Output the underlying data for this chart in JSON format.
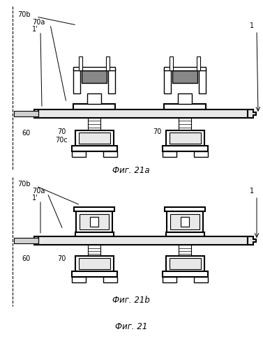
{
  "bg_color": "#ffffff",
  "line_color": "#000000",
  "gray_fill": "#d0d0d0",
  "light_gray": "#e8e8e8",
  "dark_gray": "#888888",
  "fig21a_label": "Фиг. 21а",
  "fig21b_label": "Фиг. 21b",
  "fig21_label": "Фиг. 21",
  "labels": {
    "70b_top": "70b",
    "70a_top": "70a",
    "1prime_top": "1'",
    "70_top_left": "70",
    "70_top_right": "70",
    "60_top": "60",
    "70c_top": "70c",
    "1_top": "1",
    "70b_bot": "70b",
    "70a_bot": "70a",
    "1prime_bot": "1'",
    "60_bot": "60",
    "70_bot": "70",
    "1_bot": "1"
  }
}
